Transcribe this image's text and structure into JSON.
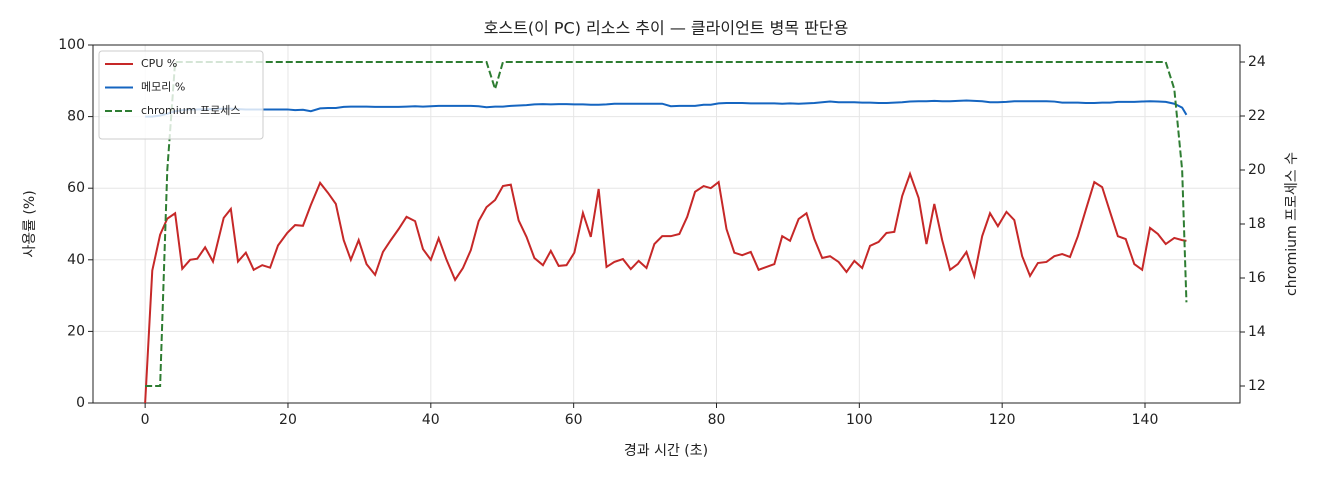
{
  "chart_data": {
    "type": "line",
    "title": "호스트(이 PC) 리소스 추이 — 클라이언트 병목 판단용",
    "x_label": "경과 시간 (초)",
    "y_label": "사용률 (%)",
    "y2_label": "chromium 프로세스 수",
    "x": [
      0,
      1,
      2.1,
      3.1,
      4.2,
      5.2,
      6.3,
      7.3,
      8.4,
      9.5,
      11,
      12,
      13,
      14.1,
      15.2,
      16.4,
      17.5,
      18.6,
      19.9,
      21,
      22.1,
      23.2,
      24.5,
      25.6,
      26.7,
      27.8,
      28.8,
      29.9,
      31,
      32.2,
      33.3,
      34.4,
      35.5,
      36.6,
      37.8,
      38.9,
      40,
      41.1,
      42.2,
      43.4,
      44.5,
      45.6,
      46.7,
      47.8,
      49,
      50.1,
      51.2,
      52.3,
      53.4,
      54.5,
      55.7,
      56.8,
      57.9,
      59,
      60.1,
      61.3,
      62.4,
      63.5,
      64.6,
      65.7,
      66.9,
      68,
      69.1,
      70.2,
      71.3,
      72.4,
      73.6,
      74.8,
      75.9,
      77,
      78.2,
      79.2,
      80.3,
      81.4,
      82.5,
      83.6,
      84.8,
      85.9,
      87,
      88.1,
      89.2,
      90.3,
      91.5,
      92.6,
      93.7,
      94.8,
      95.9,
      97.1,
      98.2,
      99.3,
      100.4,
      101.5,
      102.7,
      103.8,
      104.9,
      106,
      107.1,
      108.3,
      109.4,
      110.5,
      111.6,
      112.7,
      113.8,
      115,
      116.1,
      117.2,
      118.3,
      119.4,
      120.6,
      121.7,
      122.8,
      123.9,
      125,
      126.2,
      127.3,
      128.4,
      129.5,
      130.6,
      131.7,
      132.9,
      134,
      135.1,
      136.2,
      137.3,
      138.5,
      139.6,
      140.7,
      141.8,
      142.9,
      144.1,
      145.2,
      145.8
    ],
    "series": [
      {
        "name": "CPU %",
        "color": "#c62828",
        "linestyle": "solid",
        "values": [
          0,
          37,
          47,
          51.5,
          53,
          37.5,
          40,
          40.3,
          43.5,
          39.5,
          51.7,
          54.2,
          39.5,
          42,
          37.2,
          38.5,
          37.8,
          44,
          47.5,
          49.7,
          49.5,
          55.3,
          61.5,
          58.7,
          55.6,
          45.5,
          40,
          45.5,
          38.8,
          35.8,
          42.2,
          45.5,
          48.6,
          52,
          50.8,
          43,
          40,
          46,
          40,
          34.4,
          37.7,
          42.7,
          50.8,
          54.7,
          56.7,
          60.6,
          61,
          51,
          46.4,
          40.5,
          38.5,
          42.5,
          38.3,
          38.5,
          42,
          53.1,
          46.4,
          59.8,
          38,
          39.4,
          40.2,
          37.4,
          39.7,
          37.7,
          44.4,
          46.6,
          46.6,
          47.2,
          52,
          59,
          60.6,
          60,
          61.7,
          48.6,
          42,
          41.3,
          42.2,
          37.2,
          38,
          38.8,
          46.6,
          45.3,
          51.4,
          53,
          45.8,
          40.5,
          41,
          39.4,
          36.6,
          39.7,
          37.7,
          43.9,
          45,
          47.5,
          47.8,
          57.8,
          64,
          57.3,
          44.4,
          55.6,
          45.5,
          37.2,
          38.8,
          42.2,
          35.5,
          46.6,
          53,
          49.4,
          53.4,
          51.1,
          41,
          35.5,
          39.1,
          39.4,
          41,
          41.6,
          40.8,
          46.6,
          53.9,
          61.7,
          60.3,
          53.4,
          46.6,
          45.8,
          38.8,
          37.2,
          48.9,
          47.2,
          44.4,
          46.1,
          45.5,
          45.3
        ]
      },
      {
        "name": "메모리 %",
        "color": "#1565c0",
        "linestyle": "solid",
        "values": [
          80,
          80,
          80.3,
          80.8,
          81.5,
          81.8,
          82,
          82,
          82.1,
          82.1,
          82.2,
          82.2,
          82.1,
          82,
          82,
          82,
          82,
          82,
          82,
          81.8,
          81.9,
          81.5,
          82.3,
          82.4,
          82.4,
          82.7,
          82.8,
          82.8,
          82.8,
          82.7,
          82.7,
          82.7,
          82.7,
          82.8,
          82.9,
          82.8,
          82.9,
          83,
          83,
          83,
          83,
          83,
          82.9,
          82.6,
          82.8,
          82.8,
          83,
          83.1,
          83.2,
          83.4,
          83.5,
          83.4,
          83.5,
          83.5,
          83.4,
          83.4,
          83.3,
          83.3,
          83.4,
          83.6,
          83.6,
          83.6,
          83.6,
          83.6,
          83.6,
          83.6,
          82.9,
          83,
          83,
          83,
          83.3,
          83.3,
          83.7,
          83.8,
          83.8,
          83.8,
          83.7,
          83.7,
          83.7,
          83.7,
          83.6,
          83.7,
          83.6,
          83.7,
          83.8,
          84,
          84.2,
          84,
          84,
          84,
          83.9,
          83.9,
          83.8,
          83.8,
          83.9,
          84,
          84.2,
          84.3,
          84.3,
          84.4,
          84.3,
          84.3,
          84.4,
          84.5,
          84.4,
          84.3,
          84,
          84,
          84.1,
          84.3,
          84.3,
          84.3,
          84.3,
          84.3,
          84.2,
          83.9,
          83.9,
          83.9,
          83.8,
          83.8,
          83.9,
          83.9,
          84.1,
          84.1,
          84.1,
          84.2,
          84.3,
          84.2,
          84.1,
          83.6,
          82.5,
          80.5
        ]
      },
      {
        "name": "chromium 프로세스",
        "color": "#2e7d32",
        "linestyle": "dashed",
        "axis": "y2",
        "values": [
          12,
          12,
          12,
          20,
          24,
          24,
          24,
          24,
          24,
          24,
          24,
          24,
          24,
          24,
          24,
          24,
          24,
          24,
          24,
          24,
          24,
          24,
          24,
          24,
          24,
          24,
          24,
          24,
          24,
          24,
          24,
          24,
          24,
          24,
          24,
          24,
          24,
          24,
          24,
          24,
          24,
          24,
          24,
          24,
          23,
          24,
          24,
          24,
          24,
          24,
          24,
          24,
          24,
          24,
          24,
          24,
          24,
          24,
          24,
          24,
          24,
          24,
          24,
          24,
          24,
          24,
          24,
          24,
          24,
          24,
          24,
          24,
          24,
          24,
          24,
          24,
          24,
          24,
          24,
          24,
          24,
          24,
          24,
          24,
          24,
          24,
          24,
          24,
          24,
          24,
          24,
          24,
          24,
          24,
          24,
          24,
          24,
          24,
          24,
          24,
          24,
          24,
          24,
          24,
          24,
          24,
          24,
          24,
          24,
          24,
          24,
          24,
          24,
          24,
          24,
          24,
          24,
          24,
          24,
          24,
          24,
          24,
          24,
          24,
          24,
          24,
          24,
          24,
          24,
          23,
          20,
          15.1
        ]
      }
    ],
    "xlim": [
      -7.3,
      153.3
    ],
    "ylim": [
      0,
      100
    ],
    "y2lim": [
      11.37,
      24.63
    ],
    "xticks": [
      0,
      20,
      40,
      60,
      80,
      100,
      120,
      140
    ],
    "yticks": [
      0,
      20,
      40,
      60,
      80,
      100
    ],
    "y2ticks": [
      12,
      14,
      16,
      18,
      20,
      22,
      24
    ],
    "grid": true,
    "legend": "upper left"
  }
}
